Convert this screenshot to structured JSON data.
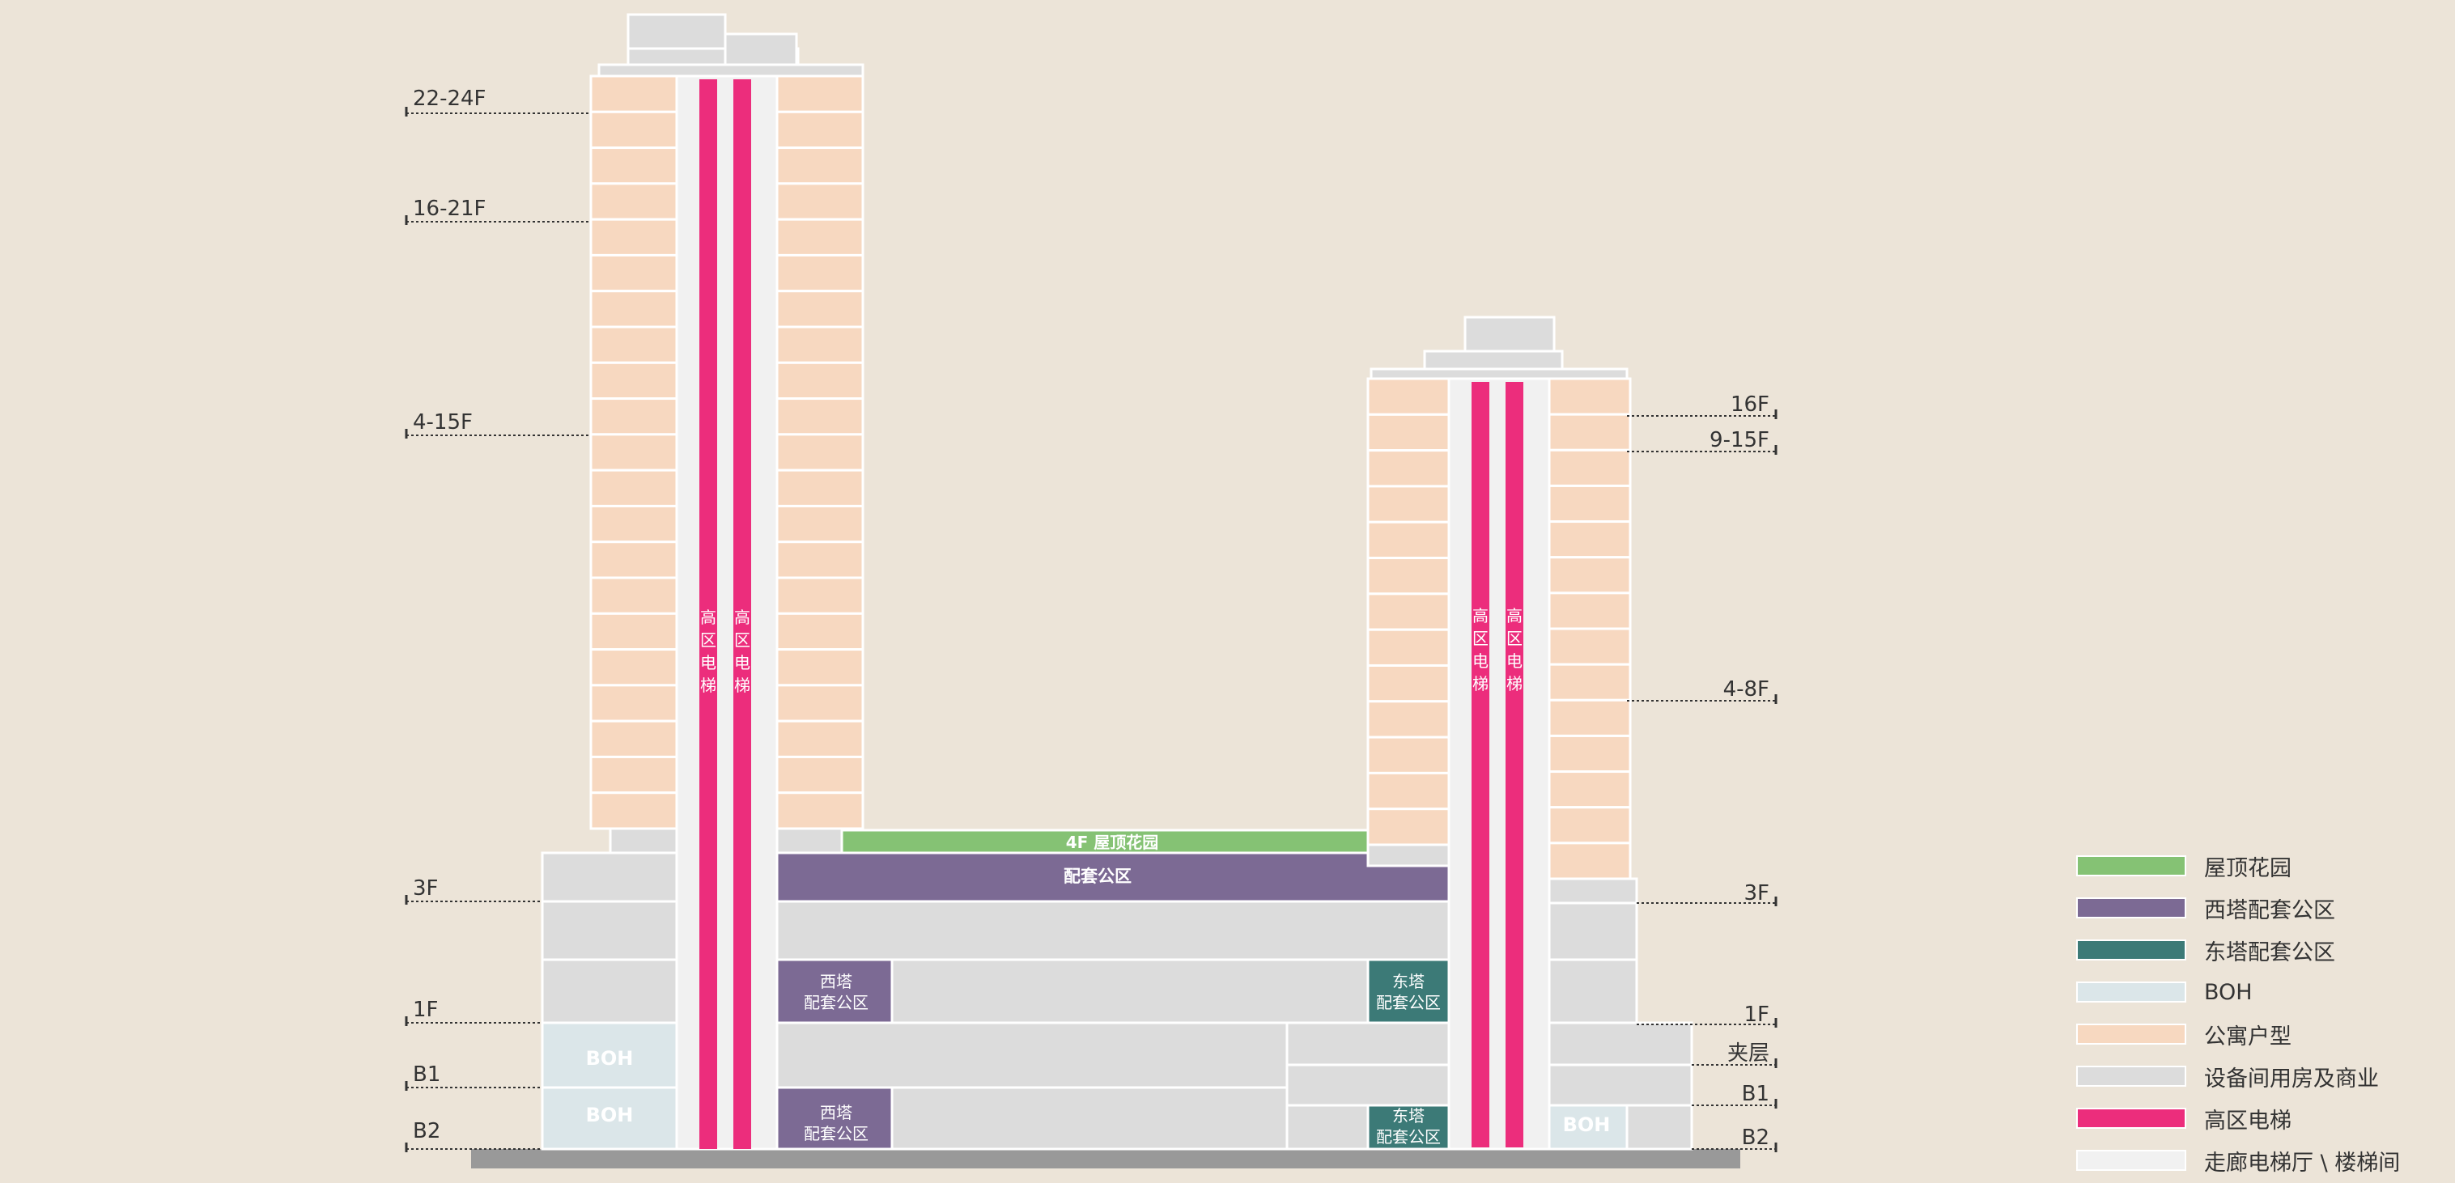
{
  "colors": {
    "background": "#ece4d8",
    "roof_garden": "#85c274",
    "west_amenity": "#7c6a94",
    "east_amenity": "#3c7a77",
    "boh": "#dbe6e9",
    "apartment": "#f7d8c0",
    "service": "#dcdcdc",
    "elevator": "#ec2d7c",
    "corridor": "#f1f1f1",
    "ground": "#999999"
  },
  "floor_labels": {
    "west": [
      "22-24F",
      "16-21F",
      "4-15F",
      "3F",
      "1F",
      "B1",
      "B2"
    ],
    "east": [
      "16F",
      "9-15F",
      "4-8F",
      "3F",
      "1F",
      "夹层",
      "B1",
      "B2"
    ]
  },
  "elevator_label": "高区电梯",
  "blocks": {
    "roof_garden": "4F 屋顶花园",
    "amenity_center": "配套公区",
    "west_amenity_line1": "西塔",
    "west_amenity_line2": "配套公区",
    "east_amenity_line1": "东塔",
    "east_amenity_line2": "配套公区",
    "boh": "BOH"
  },
  "legend": [
    {
      "label": "屋顶花园",
      "color": "#85c274"
    },
    {
      "label": "西塔配套公区",
      "color": "#7c6a94"
    },
    {
      "label": "东塔配套公区",
      "color": "#3c7a77"
    },
    {
      "label": "BOH",
      "color": "#dbe6e9"
    },
    {
      "label": "公寓户型",
      "color": "#f7d8c0"
    },
    {
      "label": "设备间用房及商业",
      "color": "#dcdcdc"
    },
    {
      "label": "高区电梯",
      "color": "#ec2d7c"
    },
    {
      "label": "走廊电梯厅 \\ 楼梯间",
      "color": "#f1f1f1"
    }
  ]
}
